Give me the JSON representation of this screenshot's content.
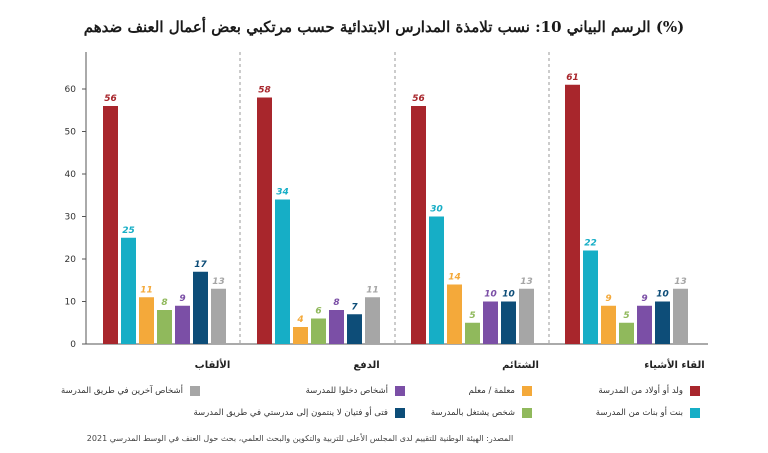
{
  "chart_data": {
    "type": "bar",
    "title": "الرسم البياني 10: نسب تلامذة المدارس الابتدائية حسب مرتكبي بعض أعمال العنف ضدهم (%)",
    "categories": [
      "الألقاب",
      "الدفع",
      "الشتائم",
      "القاء الأشياء"
    ],
    "ylim": [
      0,
      70
    ],
    "yticks": [
      0,
      10,
      20,
      30,
      40,
      50,
      60
    ],
    "grid": false,
    "xlabel": "",
    "ylabel": "",
    "series": [
      {
        "name": "ولد أو أولاد من المدرسة",
        "color": "#a8262c",
        "values": [
          56,
          58,
          56,
          61
        ]
      },
      {
        "name": "بنت أو بنات من المدرسة",
        "color": "#16aec6",
        "values": [
          25,
          34,
          30,
          22
        ]
      },
      {
        "name": "معلمة / معلم",
        "color": "#f4a93a",
        "values": [
          11,
          4,
          14,
          9
        ]
      },
      {
        "name": "شخص يشتغل بالمدرسة",
        "color": "#90b95c",
        "values": [
          8,
          6,
          5,
          5
        ]
      },
      {
        "name": "أشخاص دخلوا للمدرسة",
        "color": "#7b4fa6",
        "values": [
          9,
          8,
          10,
          9
        ]
      },
      {
        "name": "فتى أو فتيان لا ينتمون إلى مدرستي في طريق المدرسة",
        "color": "#0d4d78",
        "values": [
          17,
          7,
          10,
          10
        ]
      },
      {
        "name": "أشخاص آخرين في طريق المدرسة",
        "color": "#a6a6a6",
        "values": [
          13,
          11,
          13,
          13
        ]
      }
    ]
  },
  "source": "المصدر: الهيئة الوطنية للتقييم لدى المجلس الأعلى للتربية والتكوين والبحث العلمي، بحث حول العنف في الوسط المدرسي 2021"
}
